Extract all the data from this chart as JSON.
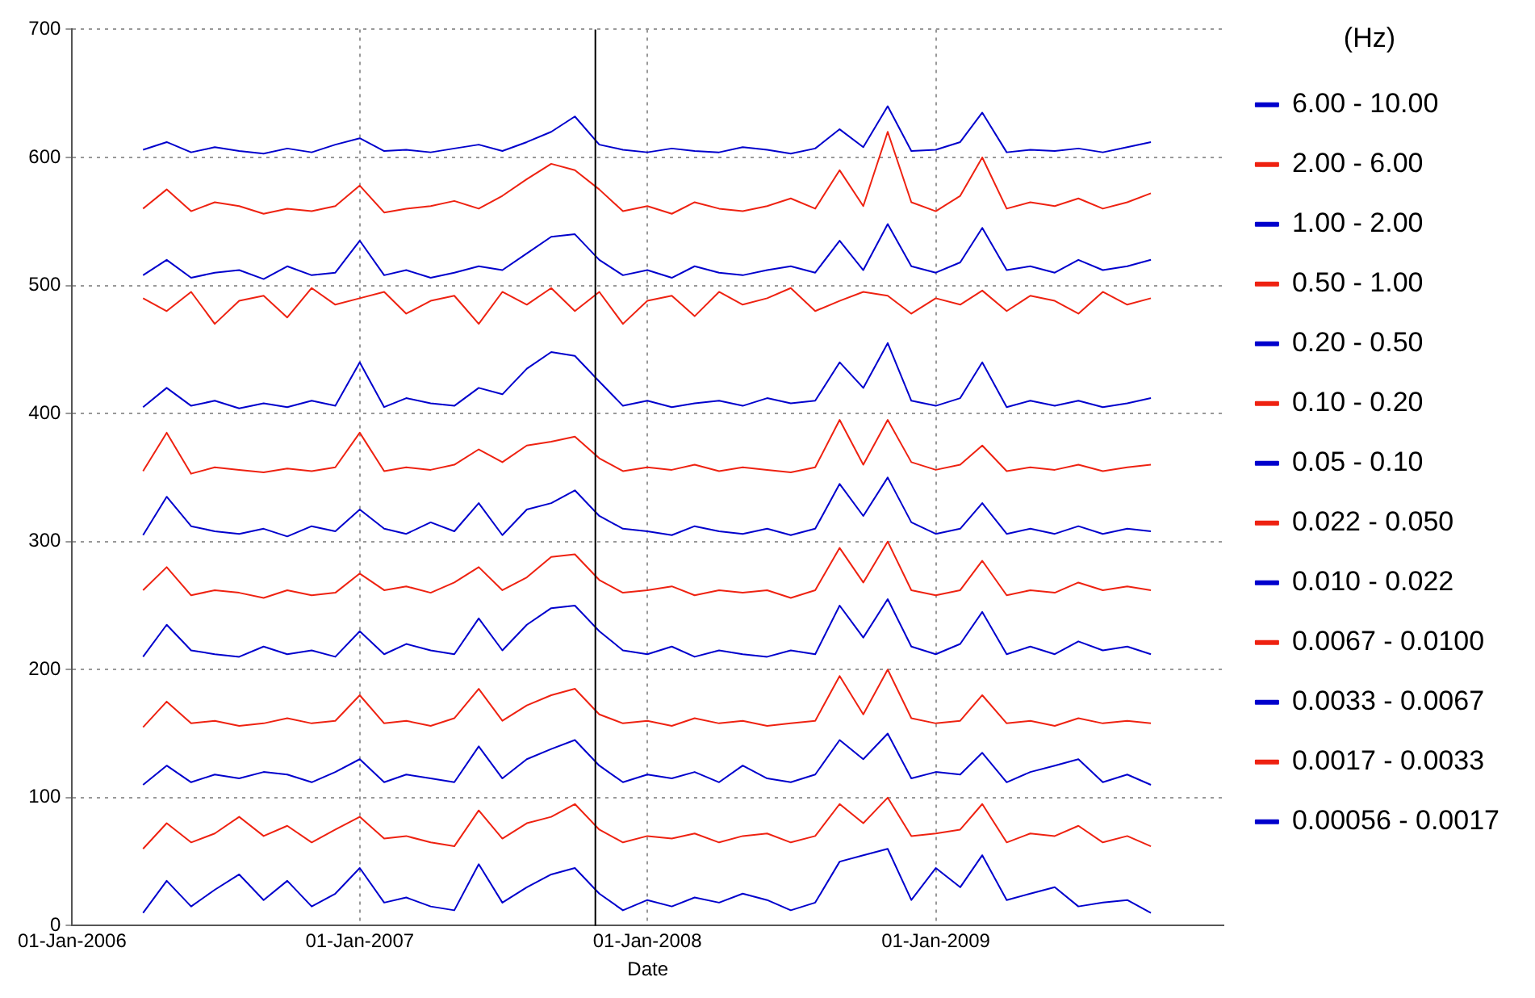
{
  "chart_data": {
    "type": "line",
    "xlabel": "Date",
    "legend_title": "(Hz)",
    "legend": "right",
    "grid": true,
    "marker": "none",
    "line_style": "solid",
    "xlim": [
      "2006-01-01",
      "2010-01-01"
    ],
    "xticks": [
      {
        "value": "2006-01-01",
        "label": "01-Jan-2006"
      },
      {
        "value": "2007-01-01",
        "label": "01-Jan-2007"
      },
      {
        "value": "2008-01-01",
        "label": "01-Jan-2008"
      },
      {
        "value": "2009-01-01",
        "label": "01-Jan-2009"
      }
    ],
    "ylim": [
      0,
      700
    ],
    "yticks": [
      0,
      100,
      200,
      300,
      400,
      500,
      600,
      700
    ],
    "ref_lines": [
      {
        "axis": "x",
        "value": "2007-10-27",
        "color": "#000000"
      }
    ],
    "x": [
      "2006-04",
      "2006-05",
      "2006-06",
      "2006-07",
      "2006-08",
      "2006-09",
      "2006-10",
      "2006-11",
      "2006-12",
      "2007-01",
      "2007-02",
      "2007-03",
      "2007-04",
      "2007-05",
      "2007-06",
      "2007-07",
      "2007-08",
      "2007-09",
      "2007-10",
      "2007-11",
      "2007-12",
      "2008-01",
      "2008-02",
      "2008-03",
      "2008-04",
      "2008-05",
      "2008-06",
      "2008-07",
      "2008-08",
      "2008-09",
      "2008-10",
      "2008-11",
      "2008-12",
      "2009-01",
      "2009-02",
      "2009-03",
      "2009-04",
      "2009-05",
      "2009-06",
      "2009-07",
      "2009-08",
      "2009-09",
      "2009-10"
    ],
    "series": [
      {
        "name": "6.00 - 10.00",
        "color": "#0000cc",
        "values": [
          606,
          612,
          604,
          608,
          605,
          603,
          607,
          604,
          610,
          615,
          605,
          606,
          604,
          607,
          610,
          605,
          612,
          620,
          632,
          610,
          606,
          604,
          607,
          605,
          604,
          608,
          606,
          603,
          607,
          622,
          608,
          640,
          605,
          606,
          612,
          635,
          604,
          606,
          605,
          607,
          604,
          608,
          612
        ]
      },
      {
        "name": "2.00 - 6.00",
        "color": "#ee2211",
        "values": [
          560,
          575,
          558,
          565,
          562,
          556,
          560,
          558,
          562,
          578,
          557,
          560,
          562,
          566,
          560,
          570,
          583,
          595,
          590,
          575,
          558,
          562,
          556,
          565,
          560,
          558,
          562,
          568,
          560,
          590,
          562,
          620,
          565,
          558,
          570,
          600,
          560,
          565,
          562,
          568,
          560,
          565,
          572
        ]
      },
      {
        "name": "1.00 - 2.00",
        "color": "#0000cc",
        "values": [
          508,
          520,
          506,
          510,
          512,
          505,
          515,
          508,
          510,
          535,
          508,
          512,
          506,
          510,
          515,
          512,
          525,
          538,
          540,
          520,
          508,
          512,
          506,
          515,
          510,
          508,
          512,
          515,
          510,
          535,
          512,
          548,
          515,
          510,
          518,
          545,
          512,
          515,
          510,
          520,
          512,
          515,
          520
        ]
      },
      {
        "name": "0.50 - 1.00",
        "color": "#ee2211",
        "values": [
          490,
          480,
          495,
          470,
          488,
          492,
          475,
          498,
          485,
          490,
          495,
          478,
          488,
          492,
          470,
          495,
          485,
          498,
          480,
          495,
          470,
          488,
          492,
          476,
          495,
          485,
          490,
          498,
          480,
          488,
          495,
          492,
          478,
          490,
          485,
          496,
          480,
          492,
          488,
          478,
          495,
          485,
          490
        ]
      },
      {
        "name": "0.20 - 0.50",
        "color": "#0000cc",
        "values": [
          405,
          420,
          406,
          410,
          404,
          408,
          405,
          410,
          406,
          440,
          405,
          412,
          408,
          406,
          420,
          415,
          435,
          448,
          445,
          425,
          406,
          410,
          405,
          408,
          410,
          406,
          412,
          408,
          410,
          440,
          420,
          455,
          410,
          406,
          412,
          440,
          405,
          410,
          406,
          410,
          405,
          408,
          412
        ]
      },
      {
        "name": "0.10 - 0.20",
        "color": "#ee2211",
        "values": [
          355,
          385,
          353,
          358,
          356,
          354,
          357,
          355,
          358,
          385,
          355,
          358,
          356,
          360,
          372,
          362,
          375,
          378,
          382,
          365,
          355,
          358,
          356,
          360,
          355,
          358,
          356,
          354,
          358,
          395,
          360,
          395,
          362,
          356,
          360,
          375,
          355,
          358,
          356,
          360,
          355,
          358,
          360
        ]
      },
      {
        "name": "0.05 - 0.10",
        "color": "#0000cc",
        "values": [
          305,
          335,
          312,
          308,
          306,
          310,
          304,
          312,
          308,
          325,
          310,
          306,
          315,
          308,
          330,
          305,
          325,
          330,
          340,
          320,
          310,
          308,
          305,
          312,
          308,
          306,
          310,
          305,
          310,
          345,
          320,
          350,
          315,
          306,
          310,
          330,
          306,
          310,
          306,
          312,
          306,
          310,
          308
        ]
      },
      {
        "name": "0.022 - 0.050",
        "color": "#ee2211",
        "values": [
          262,
          280,
          258,
          262,
          260,
          256,
          262,
          258,
          260,
          275,
          262,
          265,
          260,
          268,
          280,
          262,
          272,
          288,
          290,
          270,
          260,
          262,
          265,
          258,
          262,
          260,
          262,
          256,
          262,
          295,
          268,
          300,
          262,
          258,
          262,
          285,
          258,
          262,
          260,
          268,
          262,
          265,
          262
        ]
      },
      {
        "name": "0.010 - 0.022",
        "color": "#0000cc",
        "values": [
          210,
          235,
          215,
          212,
          210,
          218,
          212,
          215,
          210,
          230,
          212,
          220,
          215,
          212,
          240,
          215,
          235,
          248,
          250,
          230,
          215,
          212,
          218,
          210,
          215,
          212,
          210,
          215,
          212,
          250,
          225,
          255,
          218,
          212,
          220,
          245,
          212,
          218,
          212,
          222,
          215,
          218,
          212
        ]
      },
      {
        "name": "0.0067 - 0.0100",
        "color": "#ee2211",
        "values": [
          155,
          175,
          158,
          160,
          156,
          158,
          162,
          158,
          160,
          180,
          158,
          160,
          156,
          162,
          185,
          160,
          172,
          180,
          185,
          165,
          158,
          160,
          156,
          162,
          158,
          160,
          156,
          158,
          160,
          195,
          165,
          200,
          162,
          158,
          160,
          180,
          158,
          160,
          156,
          162,
          158,
          160,
          158
        ]
      },
      {
        "name": "0.0033 - 0.0067",
        "color": "#0000cc",
        "values": [
          110,
          125,
          112,
          118,
          115,
          120,
          118,
          112,
          120,
          130,
          112,
          118,
          115,
          112,
          140,
          115,
          130,
          138,
          145,
          125,
          112,
          118,
          115,
          120,
          112,
          125,
          115,
          112,
          118,
          145,
          130,
          150,
          115,
          120,
          118,
          135,
          112,
          120,
          125,
          130,
          112,
          118,
          110
        ]
      },
      {
        "name": "0.0017 - 0.0033",
        "color": "#ee2211",
        "values": [
          60,
          80,
          65,
          72,
          85,
          70,
          78,
          65,
          75,
          85,
          68,
          70,
          65,
          62,
          90,
          68,
          80,
          85,
          95,
          75,
          65,
          70,
          68,
          72,
          65,
          70,
          72,
          65,
          70,
          95,
          80,
          100,
          70,
          72,
          75,
          95,
          65,
          72,
          70,
          78,
          65,
          70,
          62
        ]
      },
      {
        "name": "0.00056 - 0.0017",
        "color": "#0000cc",
        "values": [
          10,
          35,
          15,
          28,
          40,
          20,
          35,
          15,
          25,
          45,
          18,
          22,
          15,
          12,
          48,
          18,
          30,
          40,
          45,
          25,
          12,
          20,
          15,
          22,
          18,
          25,
          20,
          12,
          18,
          50,
          55,
          60,
          20,
          45,
          30,
          55,
          20,
          25,
          30,
          15,
          18,
          20,
          10
        ]
      }
    ]
  }
}
